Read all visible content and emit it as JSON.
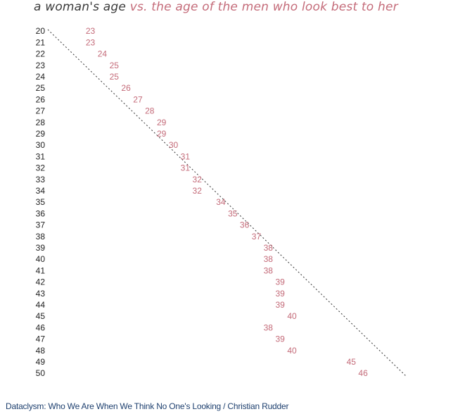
{
  "title": {
    "prefix": "a woman's age",
    "suffix": "vs. the age of the men who look best to her"
  },
  "source": "Dataclysm: Who We Are When We Think No One's Looking / Christian Rudder",
  "colors": {
    "label": "#c46b79",
    "tick": "#222222",
    "diagonal": "#333333"
  },
  "chart_data": {
    "type": "scatter",
    "title": "a woman's age vs. the age of the men who look best to her",
    "xlabel": "",
    "ylabel": "",
    "y_axis": "woman's age",
    "x_axis": "age of the men who look best to her",
    "reference_line": "y = x (dotted diagonal)",
    "x": [
      20,
      21,
      22,
      23,
      24,
      25,
      26,
      27,
      28,
      29,
      30,
      31,
      32,
      33,
      34,
      35,
      36,
      37,
      38,
      39,
      40,
      41,
      42,
      43,
      44,
      45,
      46,
      47,
      48,
      49,
      50
    ],
    "y": [
      23,
      23,
      24,
      25,
      25,
      26,
      27,
      28,
      29,
      29,
      30,
      31,
      31,
      32,
      32,
      34,
      35,
      36,
      37,
      38,
      38,
      38,
      39,
      39,
      39,
      40,
      38,
      39,
      40,
      45,
      46
    ],
    "xlim": [
      20,
      50
    ],
    "ylim": [
      20,
      50
    ],
    "grid": false,
    "legend": "none"
  }
}
